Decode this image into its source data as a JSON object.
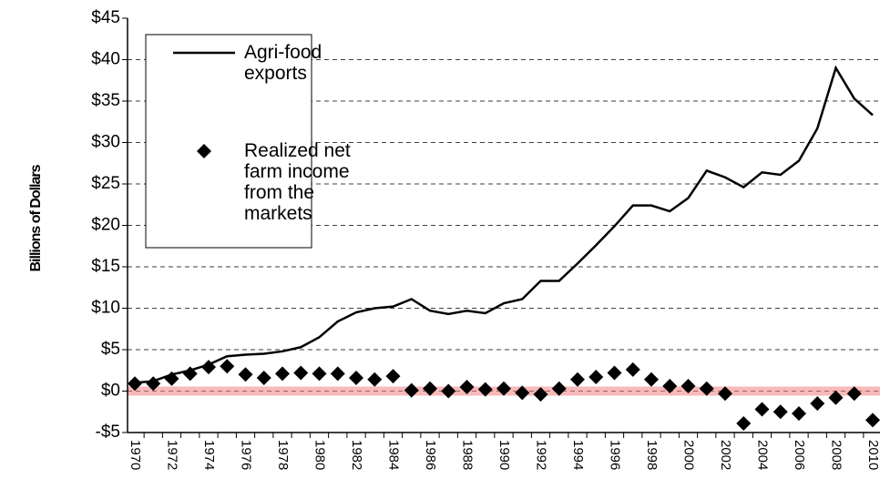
{
  "chart_data": {
    "type": "line",
    "y_label": "Billions of Dollars",
    "categories": [
      "1970",
      null,
      "1972",
      null,
      "1974",
      null,
      "1976",
      null,
      "1978",
      null,
      "1980",
      null,
      "1982",
      null,
      "1984",
      null,
      "1986",
      null,
      "1988",
      null,
      "1990",
      null,
      "1992",
      null,
      "1994",
      null,
      "1996",
      null,
      "1998",
      null,
      "2000",
      null,
      "2002",
      null,
      "2004",
      null,
      "2006",
      null,
      "2008",
      null,
      "2010"
    ],
    "series": [
      {
        "name": "Agri-food exports",
        "type": "line",
        "color": "#000000",
        "values": [
          1.0,
          1.2,
          2.0,
          2.5,
          3.2,
          4.2,
          4.4,
          4.5,
          4.8,
          5.3,
          6.5,
          8.4,
          9.5,
          10.0,
          10.2,
          11.1,
          9.7,
          9.3,
          9.7,
          9.4,
          10.6,
          11.1,
          13.3,
          13.3,
          15.4,
          17.6,
          19.9,
          22.4,
          22.4,
          21.7,
          23.3,
          26.6,
          25.8,
          24.6,
          26.4,
          26.1,
          27.8,
          31.7,
          39.0,
          35.3,
          33.3
        ]
      },
      {
        "name": "Realized net farm income from the markets",
        "type": "scatter",
        "color": "#000000",
        "values": [
          0.9,
          0.9,
          1.5,
          2.1,
          2.9,
          3.0,
          2.0,
          1.6,
          2.1,
          2.2,
          2.1,
          2.1,
          1.6,
          1.4,
          1.8,
          0.1,
          0.3,
          0.0,
          0.5,
          0.2,
          0.3,
          -0.2,
          -0.4,
          0.3,
          1.4,
          1.7,
          2.2,
          2.6,
          1.4,
          0.6,
          0.6,
          0.3,
          -0.3,
          -3.9,
          -2.2,
          -2.5,
          -2.7,
          -1.5,
          -0.8,
          -0.3,
          -3.5
        ]
      }
    ],
    "ylim": [
      -5,
      45
    ],
    "yticks": [
      {
        "value": -5,
        "label": "-$5"
      },
      {
        "value": 0,
        "label": "$0"
      },
      {
        "value": 5,
        "label": "$5"
      },
      {
        "value": 10,
        "label": "$10"
      },
      {
        "value": 15,
        "label": "$15"
      },
      {
        "value": 20,
        "label": "$20"
      },
      {
        "value": 25,
        "label": "$25"
      },
      {
        "value": 30,
        "label": "$30"
      },
      {
        "value": 35,
        "label": "$35"
      },
      {
        "value": 40,
        "label": "$40"
      },
      {
        "value": 45,
        "label": "$45"
      }
    ],
    "grid": true,
    "legend": "upper left"
  }
}
